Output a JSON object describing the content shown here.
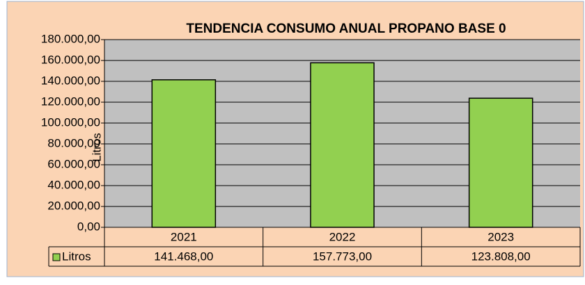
{
  "chart_data": {
    "type": "bar",
    "title": "TENDENCIA CONSUMO ANUAL PROPANO BASE 0",
    "y_label": "Litros",
    "categories": [
      "2021",
      "2022",
      "2023"
    ],
    "series": [
      {
        "name": "Litros",
        "color": "#92d050",
        "values": [
          141468,
          157773,
          123808
        ],
        "value_labels": [
          "141.468,00",
          "157.773,00",
          "123.808,00"
        ]
      }
    ],
    "ylim": [
      0,
      180000
    ],
    "yticks": [
      {
        "value": 0,
        "label": "0,00"
      },
      {
        "value": 20000,
        "label": "20.000,00"
      },
      {
        "value": 40000,
        "label": "40.000,00"
      },
      {
        "value": 60000,
        "label": "60.000,00"
      },
      {
        "value": 80000,
        "label": "80.000,00"
      },
      {
        "value": 100000,
        "label": "100.000,00"
      },
      {
        "value": 120000,
        "label": "120.000,00"
      },
      {
        "value": 140000,
        "label": "140.000,00"
      },
      {
        "value": 160000,
        "label": "160.000,00"
      },
      {
        "value": 180000,
        "label": "180.000,00"
      }
    ],
    "grid": true,
    "data_table": true
  }
}
